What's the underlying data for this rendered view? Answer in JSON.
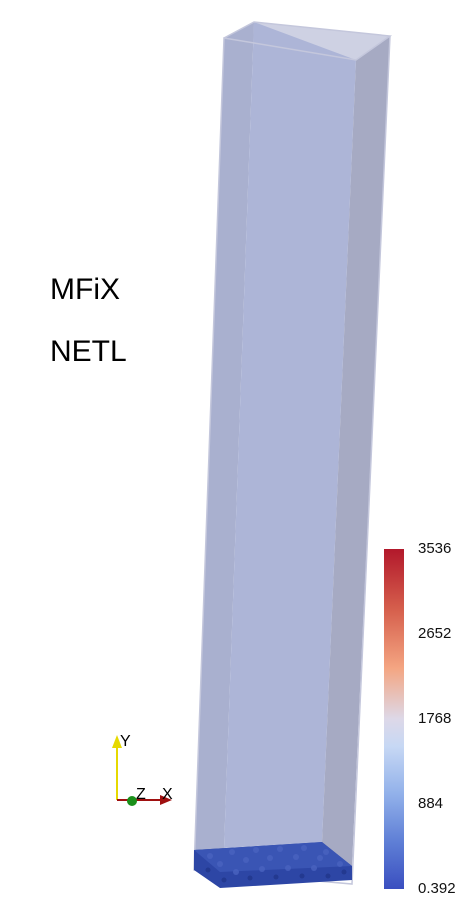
{
  "overlay": {
    "line1": "MFiX",
    "line2": "NETL"
  },
  "colorbar": {
    "ticks": [
      "3536",
      "2652",
      "1768",
      "884",
      "0.392"
    ],
    "range": [
      0.392,
      3536
    ],
    "colors": {
      "high": "#b2182b",
      "mid": "#ddd8e8",
      "low": "#3a4fc0"
    }
  },
  "axes": {
    "y_label": "Y",
    "z_label": "Z",
    "x_label": "X",
    "y_color": "#e6d900",
    "x_color": "#a01010",
    "z_color": "#1a8f1a"
  },
  "scene": {
    "column_color": "#aeb6d6",
    "bed_color": "#3048a8"
  }
}
